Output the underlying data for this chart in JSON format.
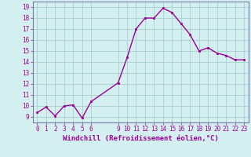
{
  "x": [
    0,
    1,
    2,
    3,
    4,
    5,
    6,
    9,
    10,
    11,
    12,
    13,
    14,
    15,
    16,
    17,
    18,
    19,
    20,
    21,
    22,
    23
  ],
  "y": [
    9.4,
    9.9,
    9.1,
    10.0,
    10.1,
    8.9,
    10.4,
    12.1,
    14.4,
    17.0,
    18.0,
    18.0,
    18.9,
    18.5,
    17.5,
    16.5,
    15.0,
    15.3,
    14.8,
    14.6,
    14.2,
    14.2
  ],
  "xticks": [
    0,
    1,
    2,
    3,
    4,
    5,
    6,
    9,
    10,
    11,
    12,
    13,
    14,
    15,
    16,
    17,
    18,
    19,
    20,
    21,
    22,
    23
  ],
  "yticks": [
    9,
    10,
    11,
    12,
    13,
    14,
    15,
    16,
    17,
    18,
    19
  ],
  "ylim": [
    8.5,
    19.5
  ],
  "xlim": [
    -0.5,
    23.5
  ],
  "xlabel": "Windchill (Refroidissement éolien,°C)",
  "line_color": "#990099",
  "marker_color": "#990099",
  "bg_color": "#d4efef",
  "grid_color": "#aed4d4",
  "border_color": "#7a7aaa"
}
